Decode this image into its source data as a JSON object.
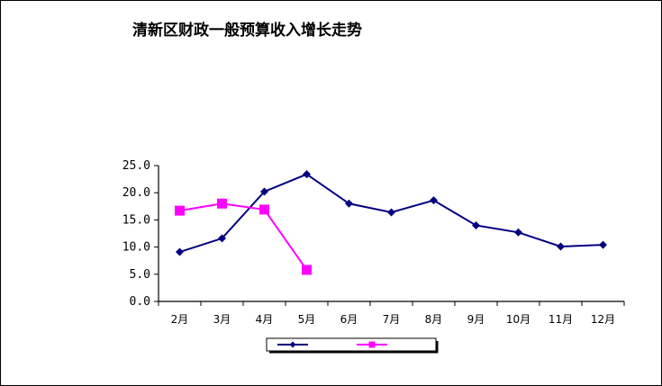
{
  "chart_data": {
    "type": "line",
    "title": "清新区财政一般预算收入增长走势",
    "categories": [
      "2月",
      "3月",
      "4月",
      "5月",
      "6月",
      "7月",
      "8月",
      "9月",
      "10月",
      "11月",
      "12月"
    ],
    "yticks": [
      "0.0",
      "5.0",
      "10.0",
      "15.0",
      "20.0",
      "25.0"
    ],
    "ylim": [
      0,
      25
    ],
    "grid": false,
    "legend_position": "bottom",
    "series": [
      {
        "name": "",
        "color": "#000080",
        "marker": "diamond",
        "values": [
          9.1,
          11.6,
          20.2,
          23.4,
          18.0,
          16.4,
          18.6,
          14.0,
          12.7,
          10.1,
          10.4
        ]
      },
      {
        "name": "",
        "color": "#FF00FF",
        "marker": "square",
        "values": [
          16.7,
          18.0,
          16.9,
          5.8,
          null,
          null,
          null,
          null,
          null,
          null,
          null
        ]
      }
    ]
  }
}
